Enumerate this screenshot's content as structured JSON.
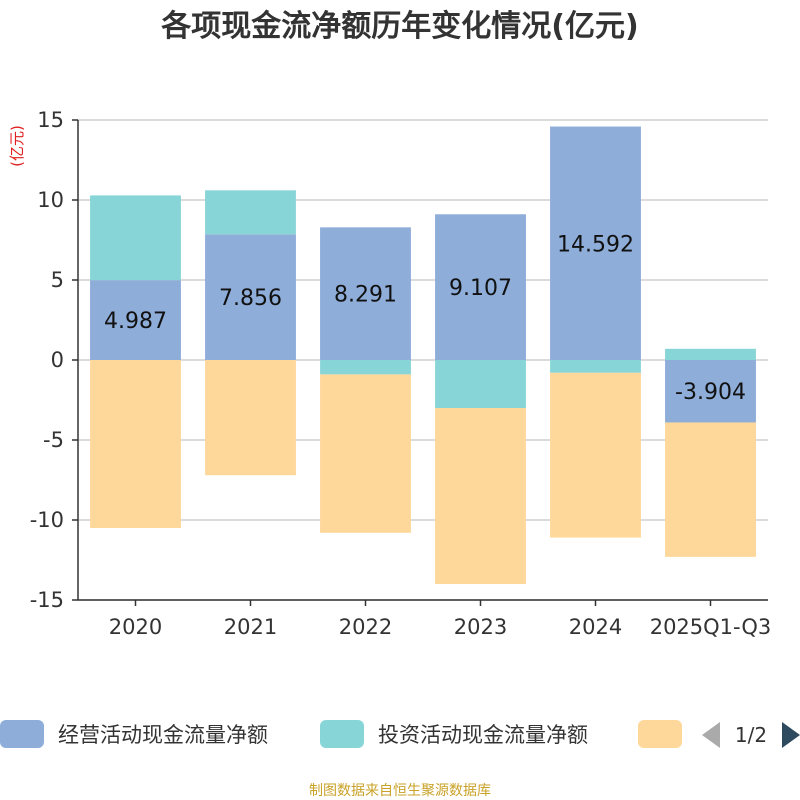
{
  "chart_data": {
    "type": "bar",
    "stacked": true,
    "title": "各项现金流净额历年变化情况(亿元)",
    "ylabel": "(亿元)",
    "xlabel": "",
    "ylim": [
      -15,
      15
    ],
    "yticks": [
      15,
      10,
      5,
      0,
      -5,
      -10,
      -15
    ],
    "grid": true,
    "categories": [
      "2020",
      "2021",
      "2022",
      "2023",
      "2024",
      "2025Q1-Q3"
    ],
    "series": [
      {
        "name": "经营活动现金流量净额",
        "color": "#8eadd9",
        "values": [
          4.987,
          7.856,
          8.291,
          9.107,
          14.592,
          -3.904
        ],
        "labels": [
          "4.987",
          "7.856",
          "8.291",
          "9.107",
          "14.592",
          "-3.904"
        ]
      },
      {
        "name": "投资活动现金流量净额",
        "color": "#88d5d7",
        "values": [
          5.3,
          2.75,
          -0.9,
          -3.0,
          -0.8,
          0.7
        ]
      },
      {
        "name": "",
        "color": "#fed89b",
        "values": [
          -10.5,
          -7.2,
          -9.9,
          -11.0,
          -10.3,
          -8.4
        ]
      }
    ]
  },
  "legend": {
    "page": "1/2",
    "prev_icon": "triangle-left-icon",
    "next_icon": "triangle-right-icon"
  },
  "source": "制图数据来自恒生聚源数据库"
}
